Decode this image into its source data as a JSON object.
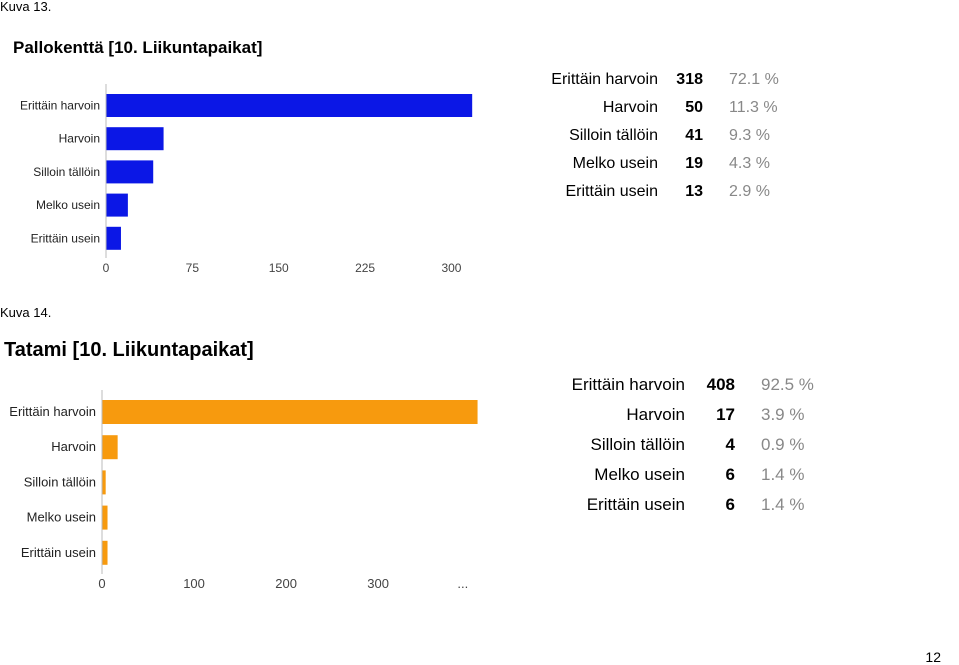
{
  "figures": [
    {
      "caption": "Kuva 13.",
      "title": "Pallokenttä [10. Liikuntapaikat]",
      "bar_color": "#0B17E6",
      "rows": [
        {
          "label": "Erittäin harvoin",
          "count": "318",
          "percent": "72.1 %"
        },
        {
          "label": "Harvoin",
          "count": "50",
          "percent": "11.3 %"
        },
        {
          "label": "Silloin tällöin",
          "count": "41",
          "percent": "9.3 %"
        },
        {
          "label": "Melko usein",
          "count": "19",
          "percent": "4.3 %"
        },
        {
          "label": "Erittäin usein",
          "count": "13",
          "percent": "2.9 %"
        }
      ]
    },
    {
      "caption": "Kuva 14.",
      "title": "Tatami [10. Liikuntapaikat]",
      "bar_color": "#F79A0E",
      "rows": [
        {
          "label": "Erittäin harvoin",
          "count": "408",
          "percent": "92.5 %"
        },
        {
          "label": "Harvoin",
          "count": "17",
          "percent": "3.9 %"
        },
        {
          "label": "Silloin tällöin",
          "count": "4",
          "percent": "0.9 %"
        },
        {
          "label": "Melko usein",
          "count": "6",
          "percent": "1.4 %"
        },
        {
          "label": "Erittäin usein",
          "count": "6",
          "percent": "1.4 %"
        }
      ]
    }
  ],
  "page_number": "12",
  "chart_data": [
    {
      "type": "bar",
      "orientation": "horizontal",
      "title": "Pallokenttä [10. Liikuntapaikat]",
      "categories": [
        "Erittäin harvoin",
        "Harvoin",
        "Silloin tällöin",
        "Melko usein",
        "Erittäin usein"
      ],
      "values": [
        318,
        50,
        41,
        19,
        13
      ],
      "xlim": [
        0,
        330
      ],
      "xticks": [
        "0",
        "75",
        "150",
        "225",
        "300"
      ],
      "color": "#0B17E6",
      "grid": false
    },
    {
      "type": "bar",
      "orientation": "horizontal",
      "title": "Tatami [10. Liikuntapaikat]",
      "categories": [
        "Erittäin harvoin",
        "Harvoin",
        "Silloin tällöin",
        "Melko usein",
        "Erittäin usein"
      ],
      "values": [
        408,
        17,
        4,
        6,
        6
      ],
      "xlim": [
        0,
        415
      ],
      "xticks": [
        "0",
        "100",
        "200",
        "300",
        "..."
      ],
      "color": "#F79A0E",
      "grid": false
    }
  ]
}
